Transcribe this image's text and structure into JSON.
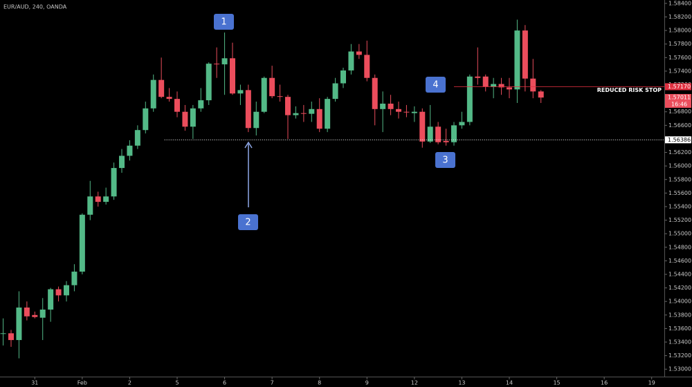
{
  "chart_data": {
    "type": "candlestick",
    "title": "EUR/AUD, 240, OANDA",
    "up_color": "#53b987",
    "down_color": "#eb4d5c",
    "x": [
      0,
      1,
      2,
      3,
      4,
      5,
      6,
      7,
      8,
      9,
      10,
      11,
      12,
      13,
      14,
      15,
      16,
      17,
      18,
      19,
      20,
      21,
      22,
      23,
      24,
      25,
      26,
      27,
      28,
      29,
      30,
      31,
      32,
      33,
      34,
      35,
      36,
      37,
      38,
      39,
      40,
      41,
      42,
      43,
      44,
      45,
      46,
      47,
      48,
      49,
      50,
      51,
      52,
      53,
      54,
      55,
      56,
      57,
      58,
      59,
      60,
      61,
      62,
      63,
      64,
      65,
      66,
      67,
      68
    ],
    "open": [
      1.5353,
      1.5353,
      1.5343,
      1.5391,
      1.538,
      1.5376,
      1.5388,
      1.5418,
      1.5409,
      1.5424,
      1.5444,
      1.5528,
      1.5555,
      1.5547,
      1.5555,
      1.5597,
      1.5615,
      1.563,
      1.5653,
      1.5685,
      1.5727,
      1.5702,
      1.5699,
      1.568,
      1.5658,
      1.5685,
      1.5697,
      1.5751,
      1.575,
      1.5759,
      1.5707,
      1.5712,
      1.5656,
      1.568,
      1.573,
      1.5703,
      1.5702,
      1.5675,
      1.5678,
      1.5677,
      1.5684,
      1.5655,
      1.5699,
      1.5722,
      1.5741,
      1.5769,
      1.5764,
      1.573,
      1.5684,
      1.5692,
      1.5684,
      1.568,
      1.5678,
      1.568,
      1.5636,
      1.5658,
      1.5637,
      1.5635,
      1.566,
      1.5665,
      1.5732,
      1.5732,
      1.5717,
      1.5721,
      1.5716,
      1.5713,
      1.58,
      1.5729,
      1.571
    ],
    "high": [
      1.5375,
      1.5358,
      1.5415,
      1.54,
      1.5385,
      1.5405,
      1.542,
      1.5422,
      1.543,
      1.5455,
      1.553,
      1.5578,
      1.5562,
      1.5568,
      1.5605,
      1.5625,
      1.5638,
      1.566,
      1.5695,
      1.5735,
      1.576,
      1.5715,
      1.571,
      1.569,
      1.569,
      1.5715,
      1.5753,
      1.5775,
      1.5797,
      1.5782,
      1.572,
      1.572,
      1.5695,
      1.5732,
      1.5748,
      1.572,
      1.5705,
      1.5688,
      1.569,
      1.5695,
      1.57,
      1.5702,
      1.573,
      1.5745,
      1.578,
      1.578,
      1.5785,
      1.5735,
      1.571,
      1.5705,
      1.5695,
      1.569,
      1.5688,
      1.5685,
      1.569,
      1.5665,
      1.5655,
      1.5665,
      1.568,
      1.5735,
      1.5775,
      1.5735,
      1.573,
      1.573,
      1.573,
      1.5816,
      1.5808,
      1.5758,
      1.5712
    ],
    "low": [
      1.5335,
      1.5333,
      1.5316,
      1.5372,
      1.5375,
      1.5343,
      1.537,
      1.54,
      1.54,
      1.5415,
      1.544,
      1.552,
      1.554,
      1.5543,
      1.555,
      1.559,
      1.5608,
      1.5625,
      1.5648,
      1.568,
      1.57,
      1.5695,
      1.5672,
      1.5652,
      1.564,
      1.568,
      1.569,
      1.573,
      1.5705,
      1.5705,
      1.569,
      1.565,
      1.5645,
      1.5678,
      1.57,
      1.5695,
      1.564,
      1.567,
      1.5665,
      1.5665,
      1.565,
      1.565,
      1.5695,
      1.5715,
      1.5735,
      1.5758,
      1.5725,
      1.566,
      1.565,
      1.5675,
      1.567,
      1.5672,
      1.5665,
      1.5627,
      1.5634,
      1.5632,
      1.563,
      1.563,
      1.5655,
      1.566,
      1.572,
      1.571,
      1.57,
      1.5705,
      1.57,
      1.5693,
      1.571,
      1.57,
      1.5693
    ],
    "close": [
      1.5353,
      1.5343,
      1.5391,
      1.5378,
      1.5377,
      1.5388,
      1.5418,
      1.5409,
      1.5424,
      1.5444,
      1.5528,
      1.5555,
      1.5547,
      1.5555,
      1.5597,
      1.5615,
      1.563,
      1.5653,
      1.5685,
      1.5727,
      1.5702,
      1.5699,
      1.568,
      1.5658,
      1.5685,
      1.5697,
      1.5751,
      1.575,
      1.5759,
      1.5707,
      1.5712,
      1.5656,
      1.568,
      1.573,
      1.5703,
      1.5702,
      1.5675,
      1.5678,
      1.5677,
      1.5684,
      1.5655,
      1.5699,
      1.5722,
      1.5741,
      1.5769,
      1.5764,
      1.573,
      1.5684,
      1.5692,
      1.5684,
      1.568,
      1.5679,
      1.568,
      1.5636,
      1.5658,
      1.5635,
      1.5635,
      1.566,
      1.5665,
      1.5732,
      1.573,
      1.5717,
      1.5721,
      1.5716,
      1.5713,
      1.58,
      1.5729,
      1.571,
      1.5701
    ],
    "xlim": [
      -0.4,
      83.6
    ],
    "xticks": [
      {
        "value": 4,
        "label": "31"
      },
      {
        "value": 10,
        "label": "Feb"
      },
      {
        "value": 16,
        "label": "2"
      },
      {
        "value": 22,
        "label": "5"
      },
      {
        "value": 28,
        "label": "6"
      },
      {
        "value": 34,
        "label": "7"
      },
      {
        "value": 40,
        "label": "8"
      },
      {
        "value": 46,
        "label": "9"
      },
      {
        "value": 52,
        "label": "12"
      },
      {
        "value": 58,
        "label": "13"
      },
      {
        "value": 64,
        "label": "14"
      },
      {
        "value": 70,
        "label": "15"
      },
      {
        "value": 76,
        "label": "16"
      },
      {
        "value": 82,
        "label": "19"
      }
    ],
    "ylim": [
      1.5289,
      1.5845
    ],
    "yticks": [
      {
        "value": 1.53,
        "label": "1.53000"
      },
      {
        "value": 1.532,
        "label": "1.53200"
      },
      {
        "value": 1.534,
        "label": "1.53400"
      },
      {
        "value": 1.536,
        "label": "1.53600"
      },
      {
        "value": 1.538,
        "label": "1.53800"
      },
      {
        "value": 1.54,
        "label": "1.54000"
      },
      {
        "value": 1.542,
        "label": "1.54200"
      },
      {
        "value": 1.544,
        "label": "1.54400"
      },
      {
        "value": 1.546,
        "label": "1.54600"
      },
      {
        "value": 1.548,
        "label": "1.54800"
      },
      {
        "value": 1.55,
        "label": "1.55000"
      },
      {
        "value": 1.552,
        "label": "1.55200"
      },
      {
        "value": 1.554,
        "label": "1.55400"
      },
      {
        "value": 1.556,
        "label": "1.55600"
      },
      {
        "value": 1.558,
        "label": "1.55800"
      },
      {
        "value": 1.56,
        "label": "1.56000"
      },
      {
        "value": 1.562,
        "label": "1.56200"
      },
      {
        "value": 1.566,
        "label": "1.56600"
      },
      {
        "value": 1.568,
        "label": "1.56800"
      },
      {
        "value": 1.572,
        "label": "1.57200"
      },
      {
        "value": 1.574,
        "label": "1.57400"
      },
      {
        "value": 1.576,
        "label": "1.57600"
      },
      {
        "value": 1.578,
        "label": "1.57800"
      },
      {
        "value": 1.58,
        "label": "1.58000"
      },
      {
        "value": 1.582,
        "label": "1.58200"
      },
      {
        "value": 1.584,
        "label": "1.58400"
      }
    ],
    "grid": false,
    "levels": [
      {
        "value": 1.56386,
        "label": "1.56386",
        "color": "#ffffff",
        "start": 20.4
      },
      {
        "value": 1.5717,
        "label": "1.57170",
        "color": "#e03040",
        "start": 57,
        "text": "REDUCED RISK STOP"
      }
    ],
    "last_price": {
      "value": 1.57011,
      "label": "1.57011",
      "timer": "16:46",
      "color": "#eb4d5c"
    },
    "annotations": [
      "1",
      "2",
      "3",
      "4"
    ]
  }
}
